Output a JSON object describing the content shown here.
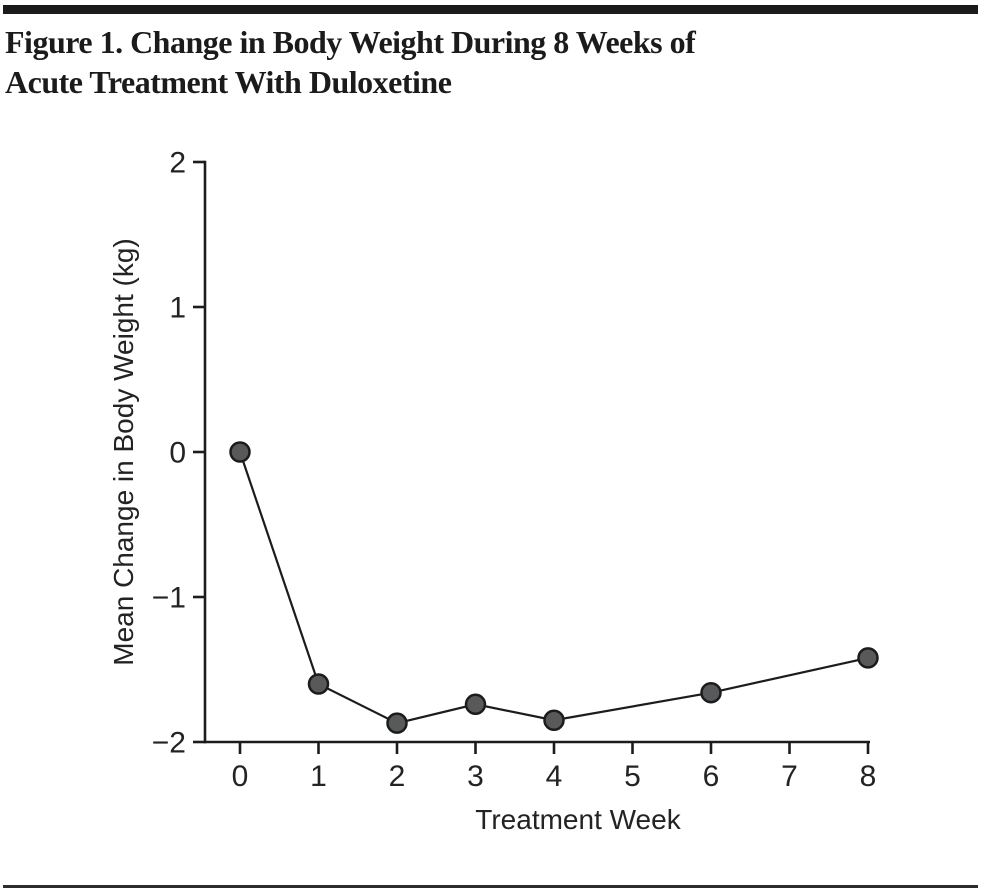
{
  "page": {
    "background": "#ffffff",
    "top_bar_color": "#1b1b1b",
    "bottom_rule_color": "#2d2d2d",
    "text_color": "#232323"
  },
  "figure": {
    "title_lines": [
      "Figure 1. Change in Body Weight During 8 Weeks of",
      "Acute Treatment With Duloxetine"
    ]
  },
  "chart_data": {
    "type": "line",
    "title": "Figure 1. Change in Body Weight During 8 Weeks of Acute Treatment With Duloxetine",
    "xlabel": "Treatment Week",
    "ylabel": "Mean Change in Body Weight (kg)",
    "x": [
      0,
      1,
      2,
      3,
      4,
      6,
      8
    ],
    "y": [
      0,
      -1.6,
      -1.87,
      -1.74,
      -1.85,
      -1.66,
      -1.42
    ],
    "xlim": [
      0,
      8
    ],
    "ylim": [
      -2,
      2
    ],
    "x_ticks": [
      0,
      1,
      2,
      3,
      4,
      5,
      6,
      7,
      8
    ],
    "x_tick_labels": [
      "0",
      "1",
      "2",
      "3",
      "4",
      "5",
      "6",
      "7",
      "8"
    ],
    "y_ticks": [
      2,
      1,
      0,
      -1,
      -2
    ],
    "y_tick_labels": [
      "2",
      "1",
      "0",
      "−1",
      "−2"
    ],
    "grid": false,
    "legend": "none",
    "line_color": "#1c1c1c",
    "axis_color": "#1c1c1c",
    "marker_fill": "#58595b",
    "marker_stroke": "#1c1c1c"
  }
}
